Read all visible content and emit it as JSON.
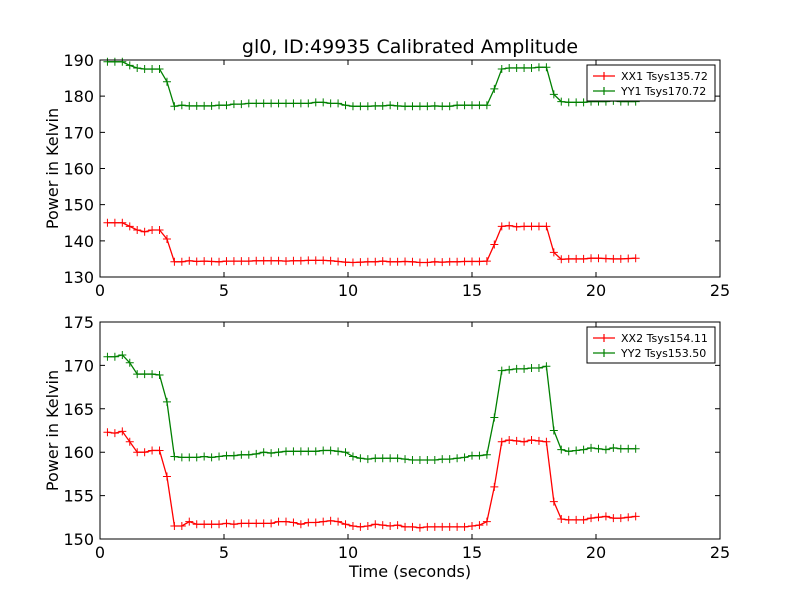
{
  "figure": {
    "title": "gl0, ID:49935 Calibrated Amplitude",
    "xlabel": "Time (seconds)"
  },
  "chart_data": [
    {
      "type": "line",
      "ylabel": "Power in Kelvin",
      "xlim": [
        0,
        25
      ],
      "ylim": [
        130,
        190
      ],
      "xticks": [
        0,
        5,
        10,
        15,
        20,
        25
      ],
      "yticks": [
        130,
        140,
        150,
        160,
        170,
        180,
        190
      ],
      "grid": false,
      "legend": "top-right",
      "series": [
        {
          "name": "XX1 Tsys135.72",
          "color": "#ff0000",
          "x": [
            0.3,
            0.6,
            0.9,
            1.2,
            1.5,
            1.8,
            2.1,
            2.4,
            2.7,
            3.0,
            3.3,
            3.6,
            3.9,
            4.2,
            4.5,
            4.8,
            5.1,
            5.4,
            5.7,
            6.0,
            6.3,
            6.6,
            6.9,
            7.2,
            7.5,
            7.8,
            8.1,
            8.4,
            8.7,
            9.0,
            9.3,
            9.6,
            9.9,
            10.2,
            10.5,
            10.8,
            11.1,
            11.4,
            11.7,
            12.0,
            12.3,
            12.6,
            12.9,
            13.2,
            13.5,
            13.8,
            14.1,
            14.4,
            14.7,
            15.0,
            15.3,
            15.6,
            15.9,
            16.2,
            16.5,
            16.8,
            17.1,
            17.4,
            17.7,
            18.0,
            18.3,
            18.6,
            18.9,
            19.2,
            19.5,
            19.8,
            20.1,
            20.4,
            20.7,
            21.0,
            21.3,
            21.6
          ],
          "y": [
            145.0,
            145.0,
            145.0,
            144.0,
            143.0,
            142.5,
            143.0,
            143.0,
            140.5,
            134.2,
            134.2,
            134.5,
            134.3,
            134.4,
            134.3,
            134.2,
            134.4,
            134.4,
            134.4,
            134.4,
            134.5,
            134.5,
            134.5,
            134.5,
            134.4,
            134.5,
            134.5,
            134.6,
            134.6,
            134.6,
            134.5,
            134.3,
            134.1,
            134.0,
            134.1,
            134.2,
            134.2,
            134.4,
            134.2,
            134.2,
            134.3,
            134.2,
            134.0,
            134.0,
            134.2,
            134.1,
            134.2,
            134.2,
            134.3,
            134.3,
            134.3,
            134.4,
            139.0,
            144.0,
            144.2,
            143.9,
            144.0,
            144.0,
            144.0,
            144.0,
            136.8,
            134.9,
            135.0,
            135.0,
            135.0,
            135.2,
            135.2,
            135.1,
            135.0,
            135.0,
            135.1,
            135.2
          ]
        },
        {
          "name": "YY1 Tsys170.72",
          "color": "#008000",
          "x": [
            0.3,
            0.6,
            0.9,
            1.2,
            1.5,
            1.8,
            2.1,
            2.4,
            2.7,
            3.0,
            3.3,
            3.6,
            3.9,
            4.2,
            4.5,
            4.8,
            5.1,
            5.4,
            5.7,
            6.0,
            6.3,
            6.6,
            6.9,
            7.2,
            7.5,
            7.8,
            8.1,
            8.4,
            8.7,
            9.0,
            9.3,
            9.6,
            9.9,
            10.2,
            10.5,
            10.8,
            11.1,
            11.4,
            11.7,
            12.0,
            12.3,
            12.6,
            12.9,
            13.2,
            13.5,
            13.8,
            14.1,
            14.4,
            14.7,
            15.0,
            15.3,
            15.6,
            15.9,
            16.2,
            16.5,
            16.8,
            17.1,
            17.4,
            17.7,
            18.0,
            18.3,
            18.6,
            18.9,
            19.2,
            19.5,
            19.8,
            20.1,
            20.4,
            20.7,
            21.0,
            21.3,
            21.6
          ],
          "y": [
            189.5,
            189.5,
            189.5,
            188.5,
            187.8,
            187.5,
            187.5,
            187.5,
            184.0,
            177.2,
            177.5,
            177.3,
            177.3,
            177.3,
            177.3,
            177.5,
            177.5,
            177.8,
            177.8,
            178.0,
            178.0,
            178.0,
            178.0,
            178.0,
            178.0,
            178.0,
            178.0,
            178.0,
            178.3,
            178.3,
            178.0,
            178.0,
            177.5,
            177.2,
            177.2,
            177.2,
            177.3,
            177.3,
            177.5,
            177.3,
            177.2,
            177.2,
            177.2,
            177.2,
            177.3,
            177.2,
            177.2,
            177.5,
            177.5,
            177.5,
            177.5,
            177.5,
            182.0,
            187.5,
            187.8,
            187.8,
            187.8,
            187.8,
            188.0,
            188.0,
            180.5,
            178.5,
            178.3,
            178.3,
            178.3,
            178.5,
            178.5,
            178.5,
            178.7,
            178.5,
            178.5,
            178.5
          ]
        }
      ]
    },
    {
      "type": "line",
      "ylabel": "Power in Kelvin",
      "xlabel": "Time (seconds)",
      "xlim": [
        0,
        25
      ],
      "ylim": [
        150,
        175
      ],
      "xticks": [
        0,
        5,
        10,
        15,
        20,
        25
      ],
      "yticks": [
        150,
        155,
        160,
        165,
        170,
        175
      ],
      "grid": false,
      "legend": "top-right",
      "series": [
        {
          "name": "XX2 Tsys154.11",
          "color": "#ff0000",
          "x": [
            0.3,
            0.6,
            0.9,
            1.2,
            1.5,
            1.8,
            2.1,
            2.4,
            2.7,
            3.0,
            3.3,
            3.6,
            3.9,
            4.2,
            4.5,
            4.8,
            5.1,
            5.4,
            5.7,
            6.0,
            6.3,
            6.6,
            6.9,
            7.2,
            7.5,
            7.8,
            8.1,
            8.4,
            8.7,
            9.0,
            9.3,
            9.6,
            9.9,
            10.2,
            10.5,
            10.8,
            11.1,
            11.4,
            11.7,
            12.0,
            12.3,
            12.6,
            12.9,
            13.2,
            13.5,
            13.8,
            14.1,
            14.4,
            14.7,
            15.0,
            15.3,
            15.6,
            15.9,
            16.2,
            16.5,
            16.8,
            17.1,
            17.4,
            17.7,
            18.0,
            18.3,
            18.6,
            18.9,
            19.2,
            19.5,
            19.8,
            20.1,
            20.4,
            20.7,
            21.0,
            21.3,
            21.6
          ],
          "y": [
            162.3,
            162.2,
            162.4,
            161.2,
            160.0,
            160.0,
            160.2,
            160.2,
            157.2,
            151.5,
            151.5,
            152.0,
            151.7,
            151.7,
            151.7,
            151.7,
            151.8,
            151.7,
            151.8,
            151.8,
            151.8,
            151.8,
            151.8,
            152.0,
            152.0,
            151.9,
            151.7,
            151.9,
            151.9,
            152.0,
            152.1,
            152.0,
            151.7,
            151.5,
            151.4,
            151.5,
            151.7,
            151.6,
            151.5,
            151.6,
            151.4,
            151.4,
            151.3,
            151.4,
            151.4,
            151.4,
            151.4,
            151.4,
            151.4,
            151.5,
            151.6,
            152.0,
            156.0,
            161.2,
            161.4,
            161.3,
            161.2,
            161.4,
            161.3,
            161.2,
            154.3,
            152.3,
            152.2,
            152.2,
            152.2,
            152.4,
            152.5,
            152.6,
            152.4,
            152.4,
            152.5,
            152.6
          ]
        },
        {
          "name": "YY2 Tsys153.50",
          "color": "#008000",
          "x": [
            0.3,
            0.6,
            0.9,
            1.2,
            1.5,
            1.8,
            2.1,
            2.4,
            2.7,
            3.0,
            3.3,
            3.6,
            3.9,
            4.2,
            4.5,
            4.8,
            5.1,
            5.4,
            5.7,
            6.0,
            6.3,
            6.6,
            6.9,
            7.2,
            7.5,
            7.8,
            8.1,
            8.4,
            8.7,
            9.0,
            9.3,
            9.6,
            9.9,
            10.2,
            10.5,
            10.8,
            11.1,
            11.4,
            11.7,
            12.0,
            12.3,
            12.6,
            12.9,
            13.2,
            13.5,
            13.8,
            14.1,
            14.4,
            14.7,
            15.0,
            15.3,
            15.6,
            15.9,
            16.2,
            16.5,
            16.8,
            17.1,
            17.4,
            17.7,
            18.0,
            18.3,
            18.6,
            18.9,
            19.2,
            19.5,
            19.8,
            20.1,
            20.4,
            20.7,
            21.0,
            21.3,
            21.6
          ],
          "y": [
            171.0,
            171.0,
            171.2,
            170.3,
            169.0,
            169.0,
            169.0,
            168.9,
            165.8,
            159.5,
            159.4,
            159.4,
            159.4,
            159.5,
            159.4,
            159.5,
            159.6,
            159.6,
            159.7,
            159.7,
            159.8,
            160.0,
            159.9,
            160.0,
            160.1,
            160.1,
            160.1,
            160.1,
            160.1,
            160.2,
            160.2,
            160.1,
            160.0,
            159.5,
            159.3,
            159.2,
            159.3,
            159.3,
            159.3,
            159.3,
            159.2,
            159.1,
            159.1,
            159.1,
            159.1,
            159.2,
            159.2,
            159.3,
            159.4,
            159.6,
            159.6,
            159.7,
            164.0,
            169.4,
            169.5,
            169.6,
            169.6,
            169.7,
            169.7,
            169.9,
            162.5,
            160.3,
            160.1,
            160.2,
            160.3,
            160.5,
            160.4,
            160.3,
            160.5,
            160.4,
            160.4,
            160.4
          ]
        }
      ]
    }
  ]
}
